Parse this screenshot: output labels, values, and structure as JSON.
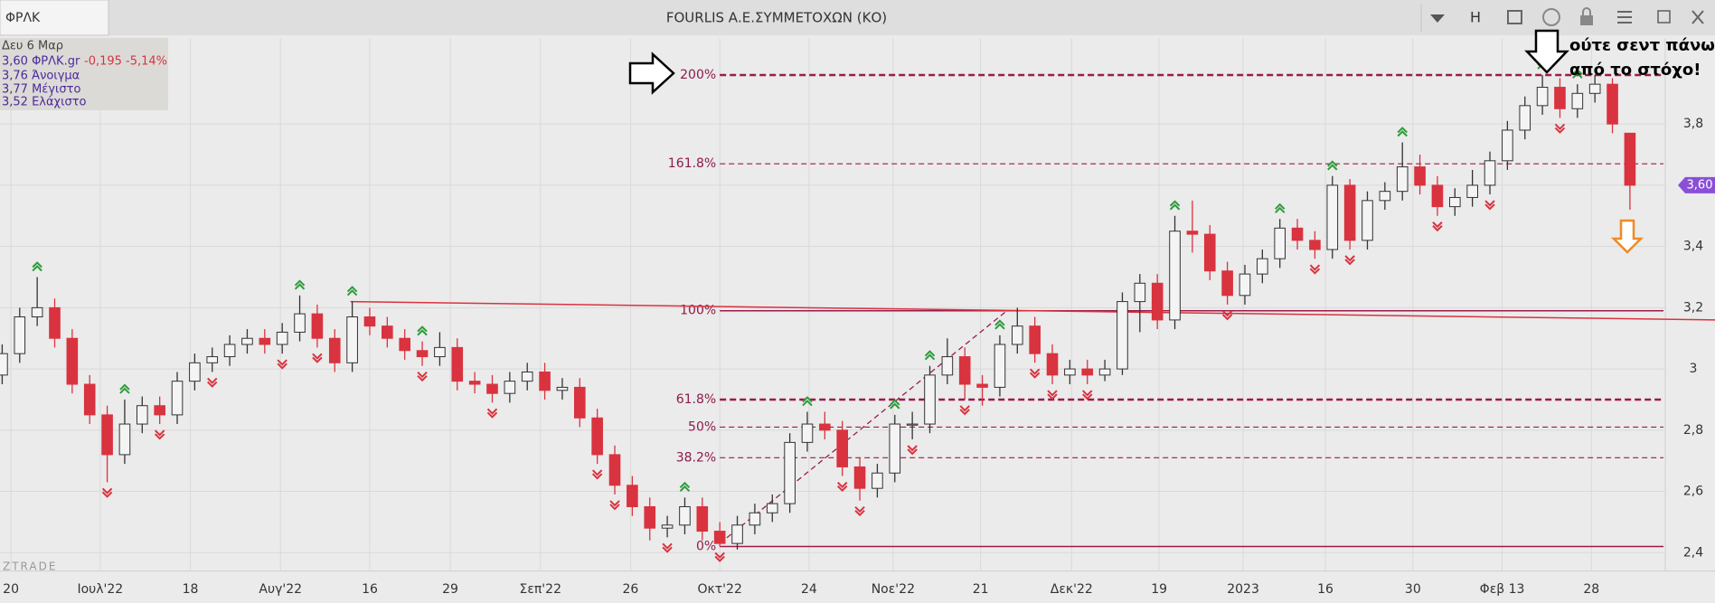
{
  "header": {
    "symbol": "ΦΡΛΚ",
    "title": "FOURLIS Α.Ε.ΣΥΜΜΕΤΟΧΩΝ (ΚΟ)",
    "toolbar_letter": "H"
  },
  "info": {
    "date": "Δευ 6 Μαρ",
    "last": "3,60 ΦΡΛΚ.gr",
    "change": "-0,195 -5,14%",
    "open": "3,76 Άνοιγμα",
    "high": "3,77 Μέγιστο",
    "low": "3,52 Ελάχιστο"
  },
  "annotation": [
    "ούτε σεντ πάνω",
    "από το στόχο!"
  ],
  "watermark": "ZTRADE",
  "chart_data": {
    "type": "candlestick",
    "open": [
      2.98,
      3.05,
      3.17,
      3.2,
      3.1,
      2.95,
      2.85,
      2.72,
      2.82,
      2.88,
      2.85,
      2.96,
      3.02,
      3.04,
      3.08,
      3.1,
      3.08,
      3.12,
      3.18,
      3.1,
      3.02,
      3.17,
      3.14,
      3.1,
      3.06,
      3.04,
      3.07,
      2.96,
      2.95,
      2.92,
      2.96,
      2.99,
      2.93,
      2.94,
      2.84,
      2.72,
      2.62,
      2.55,
      2.48,
      2.49,
      2.55,
      2.47,
      2.43,
      2.49,
      2.53,
      2.56,
      2.76,
      2.82,
      2.8,
      2.68,
      2.61,
      2.66,
      2.82,
      2.82,
      2.98,
      3.04,
      2.95,
      2.94,
      3.08,
      3.14,
      3.05,
      2.98,
      3.0,
      2.98,
      3.0,
      3.22,
      3.28,
      3.16,
      3.45,
      3.44,
      3.32,
      3.24,
      3.31,
      3.36,
      3.46,
      3.42,
      3.39,
      3.6,
      3.42,
      3.55,
      3.58,
      3.66,
      3.6,
      3.53,
      3.56,
      3.6,
      3.68,
      3.78,
      3.86,
      3.92,
      3.85,
      3.9,
      3.93,
      3.77
    ],
    "high": [
      3.08,
      3.2,
      3.3,
      3.23,
      3.13,
      2.98,
      2.88,
      2.9,
      2.91,
      2.91,
      2.99,
      3.05,
      3.07,
      3.11,
      3.13,
      3.13,
      3.15,
      3.24,
      3.21,
      3.13,
      3.22,
      3.2,
      3.17,
      3.13,
      3.09,
      3.12,
      3.1,
      2.99,
      2.98,
      2.99,
      3.02,
      3.02,
      2.97,
      2.97,
      2.87,
      2.75,
      2.65,
      2.58,
      2.52,
      2.58,
      2.58,
      2.5,
      2.52,
      2.56,
      2.59,
      2.79,
      2.86,
      2.86,
      2.83,
      2.71,
      2.69,
      2.85,
      2.86,
      3.01,
      3.1,
      3.07,
      2.98,
      3.11,
      3.2,
      3.17,
      3.08,
      3.03,
      3.03,
      3.03,
      3.25,
      3.31,
      3.31,
      3.5,
      3.55,
      3.47,
      3.35,
      3.34,
      3.39,
      3.49,
      3.49,
      3.45,
      3.63,
      3.62,
      3.58,
      3.61,
      3.74,
      3.7,
      3.63,
      3.59,
      3.65,
      3.71,
      3.81,
      3.89,
      3.96,
      3.95,
      3.93,
      3.96,
      3.95,
      3.77
    ],
    "low": [
      2.95,
      3.02,
      3.14,
      3.07,
      2.92,
      2.82,
      2.63,
      2.69,
      2.79,
      2.82,
      2.82,
      2.93,
      2.99,
      3.01,
      3.05,
      3.05,
      3.05,
      3.09,
      3.07,
      2.99,
      2.99,
      3.11,
      3.07,
      3.03,
      3.01,
      3.01,
      2.93,
      2.92,
      2.89,
      2.89,
      2.93,
      2.9,
      2.9,
      2.81,
      2.69,
      2.59,
      2.52,
      2.44,
      2.45,
      2.46,
      2.44,
      2.42,
      2.41,
      2.46,
      2.5,
      2.53,
      2.73,
      2.77,
      2.65,
      2.57,
      2.58,
      2.63,
      2.77,
      2.79,
      2.95,
      2.9,
      2.88,
      2.91,
      3.05,
      3.02,
      2.95,
      2.95,
      2.95,
      2.96,
      2.98,
      3.12,
      3.13,
      3.13,
      3.38,
      3.29,
      3.21,
      3.21,
      3.28,
      3.33,
      3.39,
      3.36,
      3.36,
      3.39,
      3.39,
      3.52,
      3.55,
      3.57,
      3.5,
      3.5,
      3.53,
      3.57,
      3.65,
      3.75,
      3.83,
      3.82,
      3.82,
      3.87,
      3.77,
      3.52
    ],
    "close": [
      3.05,
      3.17,
      3.2,
      3.1,
      2.95,
      2.85,
      2.72,
      2.82,
      2.88,
      2.85,
      2.96,
      3.02,
      3.04,
      3.08,
      3.1,
      3.08,
      3.12,
      3.18,
      3.1,
      3.02,
      3.17,
      3.14,
      3.1,
      3.06,
      3.04,
      3.07,
      2.96,
      2.95,
      2.92,
      2.96,
      2.99,
      2.93,
      2.94,
      2.84,
      2.72,
      2.62,
      2.55,
      2.48,
      2.49,
      2.55,
      2.47,
      2.43,
      2.49,
      2.53,
      2.56,
      2.76,
      2.82,
      2.8,
      2.68,
      2.61,
      2.66,
      2.82,
      2.82,
      2.98,
      3.04,
      2.95,
      2.94,
      3.08,
      3.14,
      3.05,
      2.98,
      3.0,
      2.98,
      3.0,
      3.22,
      3.28,
      3.16,
      3.45,
      3.44,
      3.32,
      3.24,
      3.31,
      3.36,
      3.46,
      3.42,
      3.39,
      3.6,
      3.42,
      3.55,
      3.58,
      3.66,
      3.6,
      3.53,
      3.56,
      3.6,
      3.68,
      3.78,
      3.86,
      3.92,
      3.85,
      3.9,
      3.93,
      3.8,
      3.6
    ],
    "up_color": "#f4f4f4",
    "down_color": "#d9333f",
    "fractals_up": [
      2,
      7,
      17,
      20,
      24,
      39,
      46,
      51,
      53,
      57,
      67,
      73,
      76,
      80,
      88,
      90
    ],
    "fractals_down": [
      6,
      9,
      12,
      16,
      18,
      24,
      28,
      34,
      35,
      38,
      41,
      48,
      49,
      52,
      55,
      59,
      60,
      62,
      70,
      75,
      77,
      82,
      85,
      89
    ],
    "fib_color": "#9b1b4a",
    "fib_levels": [
      {
        "label": "200%",
        "price": 3.96,
        "style": "bold"
      },
      {
        "label": "161.8%",
        "price": 3.67,
        "style": "dashed"
      },
      {
        "label": "100%",
        "price": 3.19,
        "style": "solid"
      },
      {
        "label": "61.8%",
        "price": 2.9,
        "style": "bold"
      },
      {
        "label": "50%",
        "price": 2.81,
        "style": "dashed"
      },
      {
        "label": "38.2%",
        "price": 2.71,
        "style": "dashed"
      },
      {
        "label": "0%",
        "price": 2.42,
        "style": "solid"
      }
    ],
    "fib_diagonal": {
      "x": [
        41,
        57.4
      ],
      "y": [
        2.43,
        3.19
      ]
    },
    "trendline": {
      "color": "#d9333f",
      "x": [
        19.9,
        97.9
      ],
      "y": [
        3.22,
        3.16
      ]
    },
    "price_badge": {
      "value": 3.6,
      "label": "3,60",
      "color": "#8a4fd8"
    },
    "ylim": [
      2.34,
      4.08
    ],
    "yticks": [
      {
        "value": 2.4,
        "label": "2,4"
      },
      {
        "value": 2.6,
        "label": "2,6"
      },
      {
        "value": 2.8,
        "label": "2,8"
      },
      3,
      {
        "value": 3.2,
        "label": "3,2"
      },
      {
        "value": 3.4,
        "label": "3,4"
      },
      {
        "value": 3.6,
        "label": "3,6"
      },
      {
        "value": 3.8,
        "label": "3,8"
      }
    ],
    "xticks": [
      {
        "value": 0.5,
        "label": "20"
      },
      {
        "value": 5.6,
        "label": "Ιουλ'22"
      },
      {
        "value": 10.75,
        "label": "18"
      },
      {
        "value": 15.9,
        "label": "Αυγ'22"
      },
      {
        "value": 21,
        "label": "16"
      },
      {
        "value": 25.6,
        "label": "29"
      },
      {
        "value": 30.75,
        "label": "Σεπ'22"
      },
      {
        "value": 35.9,
        "label": "26"
      },
      {
        "value": 41,
        "label": "Οκτ'22"
      },
      {
        "value": 46.1,
        "label": "24"
      },
      {
        "value": 50.9,
        "label": "Νοε'22"
      },
      {
        "value": 55.9,
        "label": "21"
      },
      {
        "value": 61.1,
        "label": "Δεκ'22"
      },
      {
        "value": 66.1,
        "label": "19"
      },
      {
        "value": 70.9,
        "label": "2023"
      },
      {
        "value": 75.6,
        "label": "16"
      },
      {
        "value": 80.6,
        "label": "30"
      },
      {
        "value": 85.7,
        "label": "Φεβ 13"
      },
      {
        "value": 90.8,
        "label": "28"
      }
    ],
    "grid": true
  }
}
